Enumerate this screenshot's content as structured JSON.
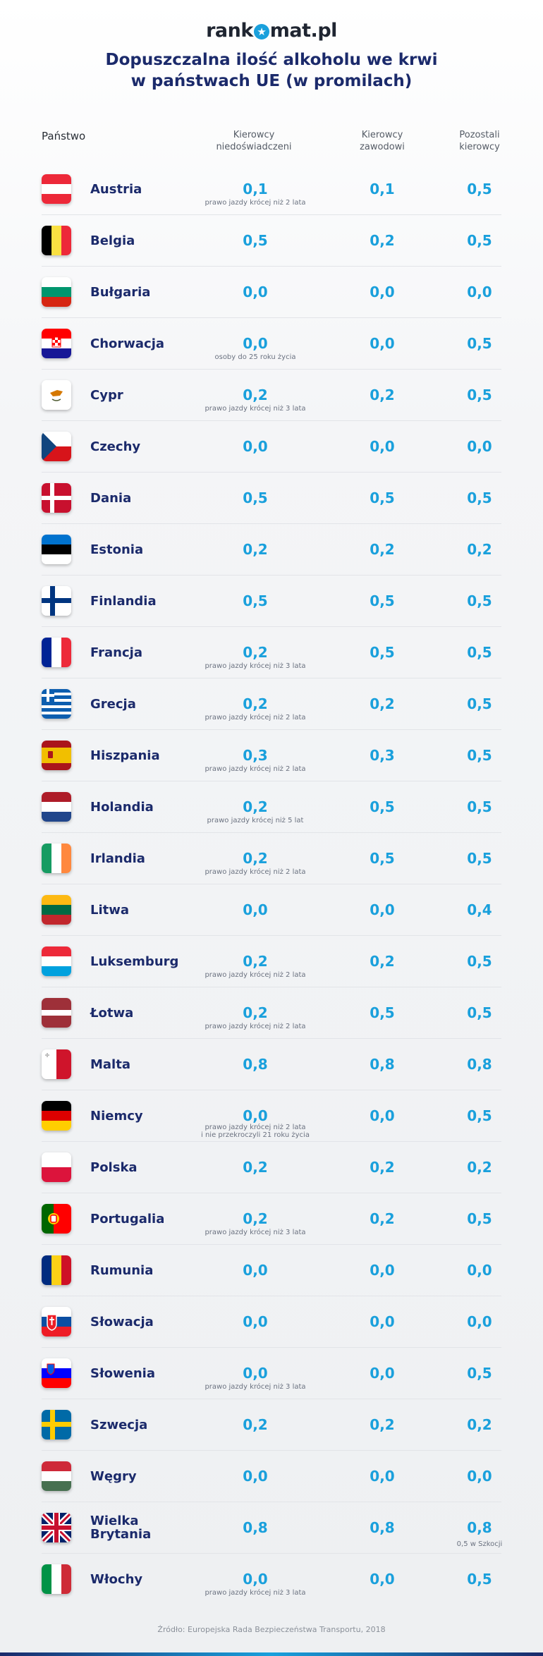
{
  "logo": {
    "before": "rank",
    "after": "mat.pl",
    "star": "★"
  },
  "title": {
    "line1": "Dopuszczalna ilość alkoholu we krwi",
    "line2": "w państwach UE (w promilach)"
  },
  "headers": {
    "country": "Państwo",
    "col1a": "Kierowcy",
    "col1b": "niedoświadczeni",
    "col2a": "Kierowcy",
    "col2b": "zawodowi",
    "col3a": "Pozostali",
    "col3b": "kierowcy"
  },
  "rows": [
    {
      "flag": "austria",
      "name": "Austria",
      "v1": "0,1",
      "v2": "0,1",
      "v3": "0,5",
      "note1": "prawo jazdy krócej niż 2 lata"
    },
    {
      "flag": "belgium",
      "name": "Belgia",
      "v1": "0,5",
      "v2": "0,2",
      "v3": "0,5"
    },
    {
      "flag": "bulgaria",
      "name": "Bułgaria",
      "v1": "0,0",
      "v2": "0,0",
      "v3": "0,0"
    },
    {
      "flag": "croatia",
      "name": "Chorwacja",
      "v1": "0,0",
      "v2": "0,0",
      "v3": "0,5",
      "note1": "osoby do 25 roku życia"
    },
    {
      "flag": "cyprus",
      "name": "Cypr",
      "v1": "0,2",
      "v2": "0,2",
      "v3": "0,5",
      "note1": "prawo jazdy krócej niż 3 lata"
    },
    {
      "flag": "czechia",
      "name": "Czechy",
      "v1": "0,0",
      "v2": "0,0",
      "v3": "0,0"
    },
    {
      "flag": "denmark",
      "name": "Dania",
      "v1": "0,5",
      "v2": "0,5",
      "v3": "0,5"
    },
    {
      "flag": "estonia",
      "name": "Estonia",
      "v1": "0,2",
      "v2": "0,2",
      "v3": "0,2"
    },
    {
      "flag": "finland",
      "name": "Finlandia",
      "v1": "0,5",
      "v2": "0,5",
      "v3": "0,5"
    },
    {
      "flag": "france",
      "name": "Francja",
      "v1": "0,2",
      "v2": "0,5",
      "v3": "0,5",
      "note1": "prawo jazdy krócej niż 3 lata"
    },
    {
      "flag": "greece",
      "name": "Grecja",
      "v1": "0,2",
      "v2": "0,2",
      "v3": "0,5",
      "note1": "prawo jazdy krócej niż 2 lata"
    },
    {
      "flag": "spain",
      "name": "Hiszpania",
      "v1": "0,3",
      "v2": "0,3",
      "v3": "0,5",
      "note1": "prawo jazdy krócej niż 2 lata"
    },
    {
      "flag": "netherlands",
      "name": "Holandia",
      "v1": "0,2",
      "v2": "0,5",
      "v3": "0,5",
      "note1": "prawo jazdy krócej niż 5 lat"
    },
    {
      "flag": "ireland",
      "name": "Irlandia",
      "v1": "0,2",
      "v2": "0,5",
      "v3": "0,5",
      "note1": "prawo jazdy krócej niż 2 lata"
    },
    {
      "flag": "lithuania",
      "name": "Litwa",
      "v1": "0,0",
      "v2": "0,0",
      "v3": "0,4"
    },
    {
      "flag": "luxembourg",
      "name": "Luksemburg",
      "v1": "0,2",
      "v2": "0,2",
      "v3": "0,5",
      "note1": "prawo jazdy krócej niż 2 lata"
    },
    {
      "flag": "latvia",
      "name": "Łotwa",
      "v1": "0,2",
      "v2": "0,5",
      "v3": "0,5",
      "note1": "prawo jazdy krócej niż 2 lata"
    },
    {
      "flag": "malta",
      "name": "Malta",
      "v1": "0,8",
      "v2": "0,8",
      "v3": "0,8"
    },
    {
      "flag": "germany",
      "name": "Niemcy",
      "v1": "0,0",
      "v2": "0,0",
      "v3": "0,5",
      "note1": "prawo jazdy krócej niż 2 lata",
      "note1b": "i nie przekroczyli 21 roku życia"
    },
    {
      "flag": "poland",
      "name": "Polska",
      "v1": "0,2",
      "v2": "0,2",
      "v3": "0,2"
    },
    {
      "flag": "portugal",
      "name": "Portugalia",
      "v1": "0,2",
      "v2": "0,2",
      "v3": "0,5",
      "note1": "prawo jazdy krócej niż 3 lata"
    },
    {
      "flag": "romania",
      "name": "Rumunia",
      "v1": "0,0",
      "v2": "0,0",
      "v3": "0,0"
    },
    {
      "flag": "slovakia",
      "name": "Słowacja",
      "v1": "0,0",
      "v2": "0,0",
      "v3": "0,0"
    },
    {
      "flag": "slovenia",
      "name": "Słowenia",
      "v1": "0,0",
      "v2": "0,0",
      "v3": "0,5",
      "note1": "prawo jazdy krócej niż 3 lata"
    },
    {
      "flag": "sweden",
      "name": "Szwecja",
      "v1": "0,2",
      "v2": "0,2",
      "v3": "0,2"
    },
    {
      "flag": "hungary",
      "name": "Węgry",
      "v1": "0,0",
      "v2": "0,0",
      "v3": "0,0"
    },
    {
      "flag": "uk",
      "name": "Wielka Brytania",
      "v1": "0,8",
      "v2": "0,8",
      "v3": "0,8",
      "note3": "0,5 w Szkocji"
    },
    {
      "flag": "italy",
      "name": "Włochy",
      "v1": "0,0",
      "v2": "0,0",
      "v3": "0,5",
      "note1": "prawo jazdy krócej niż 3 lata"
    }
  ],
  "source": "Źródło: Europejska Rada Bezpieczeństwa Transportu, 2018",
  "colors": {
    "navy": "#1b2a6b",
    "accent": "#1aa0dc"
  }
}
